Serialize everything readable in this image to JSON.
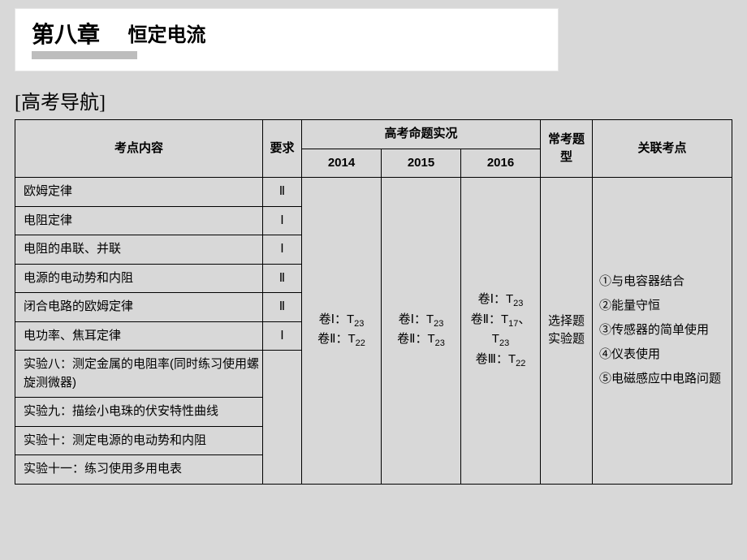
{
  "header": {
    "chapter": "第八章",
    "topic": "恒定电流"
  },
  "nav_title": "[高考导航]",
  "table": {
    "head": {
      "topic": "考点内容",
      "req": "要求",
      "exam_status": "高考命题实况",
      "y2014": "2014",
      "y2015": "2015",
      "y2016": "2016",
      "freq_type": "常考题型",
      "related": "关联考点"
    },
    "rows": [
      {
        "topic": "欧姆定律",
        "req": "Ⅱ"
      },
      {
        "topic": "电阻定律",
        "req": "Ⅰ"
      },
      {
        "topic": "电阻的串联、并联",
        "req": "Ⅰ"
      },
      {
        "topic": "电源的电动势和内阻",
        "req": "Ⅱ"
      },
      {
        "topic": "闭合电路的欧姆定律",
        "req": "Ⅱ"
      },
      {
        "topic": "电功率、焦耳定律",
        "req": "Ⅰ"
      },
      {
        "topic": "实验八：测定金属的电阻率(同时练习使用螺旋测微器)",
        "req": ""
      },
      {
        "topic": "实验九：描绘小电珠的伏安特性曲线",
        "req": ""
      },
      {
        "topic": "实验十：测定电源的电动势和内阻",
        "req": ""
      },
      {
        "topic": "实验十一：练习使用多用电表",
        "req": ""
      }
    ],
    "y2014_html": "卷Ⅰ：T<span class=\"sub\">23</span><br>卷Ⅱ：T<span class=\"sub\">22</span>",
    "y2015_html": "卷Ⅰ：T<span class=\"sub\">23</span><br>卷Ⅱ：T<span class=\"sub\">23</span>",
    "y2016_html": "卷Ⅰ：T<span class=\"sub\">23</span><br>卷Ⅱ：T<span class=\"sub\">17</span>、<br>T<span class=\"sub\">23</span><br>卷Ⅲ：T<span class=\"sub\">22</span>",
    "freq_type_html": "选择题<br>实验题",
    "related_html": "①与电容器结合<br>②能量守恒<br>③传感器的简单使用<br>④仪表使用<br>⑤电磁感应中电路问题"
  },
  "colors": {
    "background": "#d8d8d8",
    "header_box": "#ffffff",
    "underline": "#bdbdbd",
    "border": "#000000",
    "text": "#000000"
  }
}
